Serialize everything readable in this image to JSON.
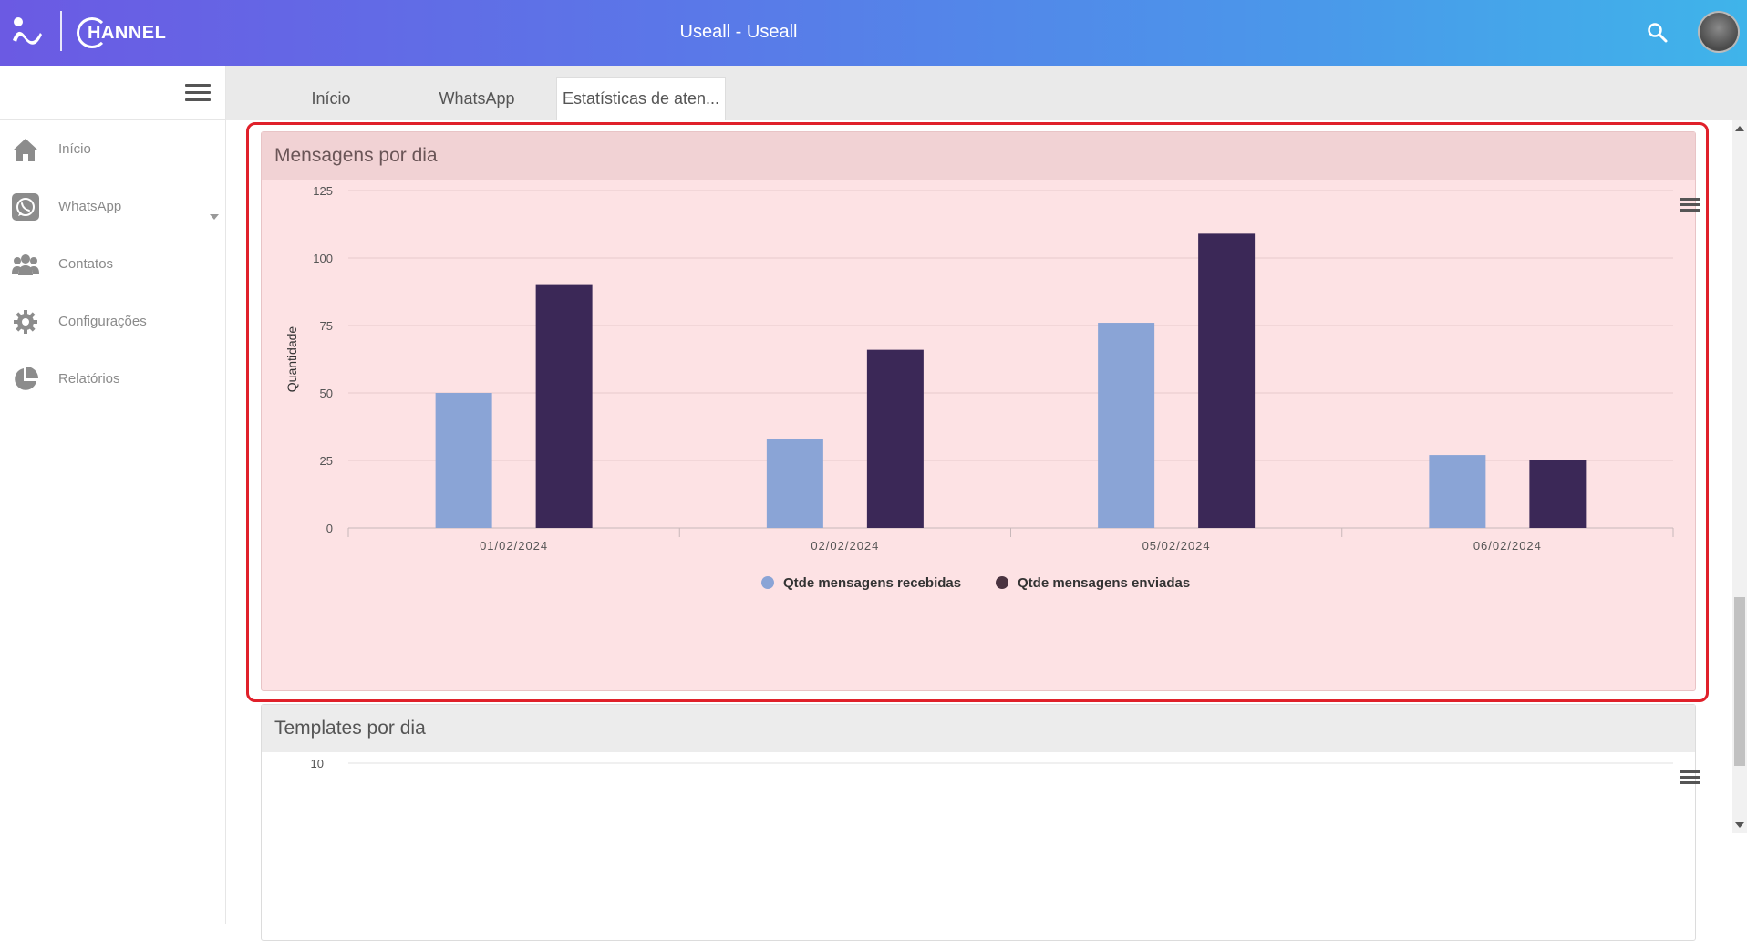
{
  "header": {
    "logo_text": "HANNEL",
    "title": "Useall - Useall"
  },
  "sidebar": {
    "items": [
      {
        "label": "Início",
        "icon": "home-icon"
      },
      {
        "label": "WhatsApp",
        "icon": "whatsapp-icon"
      },
      {
        "label": "Contatos",
        "icon": "contacts-icon"
      },
      {
        "label": "Configurações",
        "icon": "gear-icon"
      },
      {
        "label": "Relatórios",
        "icon": "pie-chart-icon"
      }
    ]
  },
  "tabs": [
    {
      "label": "Início"
    },
    {
      "label": "WhatsApp"
    },
    {
      "label": "Estatísticas de aten..."
    }
  ],
  "cards": {
    "messages": {
      "title": "Mensagens por dia"
    },
    "templates": {
      "title": "Templates por dia",
      "first_tick": "10"
    }
  },
  "colors": {
    "received": "#8aa4d6",
    "sent": "#3b2857",
    "highlight": "#e0202a"
  },
  "chart_data": {
    "type": "bar",
    "title": "Mensagens por dia",
    "ylabel": "Quantidade",
    "xlabel": "",
    "ylim": [
      0,
      125
    ],
    "yticks": [
      0,
      25,
      50,
      75,
      100,
      125
    ],
    "categories": [
      "01/02/2024",
      "02/02/2024",
      "05/02/2024",
      "06/02/2024"
    ],
    "series": [
      {
        "name": "Qtde mensagens recebidas",
        "values": [
          50,
          33,
          76,
          27
        ]
      },
      {
        "name": "Qtde mensagens enviadas",
        "values": [
          90,
          66,
          109,
          25
        ]
      }
    ],
    "legend": "bottom",
    "grid": true
  }
}
